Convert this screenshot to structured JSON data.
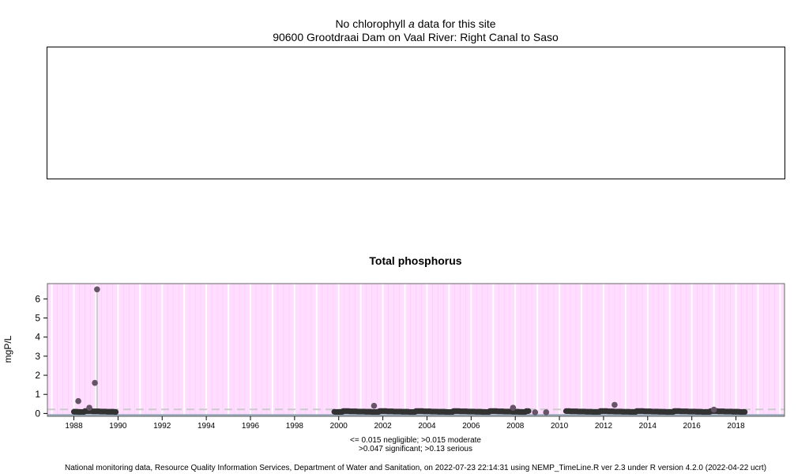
{
  "chla_panel": {
    "title_prefix": "No chlorophyll ",
    "title_italic": "a",
    "title_suffix": " data for this site",
    "site": "90600 Grootdraai Dam on Vaal River: Right Canal to Saso"
  },
  "tp_panel": {
    "title": "Total phosphorus"
  },
  "legend": {
    "line1": "<= 0.015 negligible; >0.015 moderate",
    "line2": ">0.047 significant; >0.13 serious"
  },
  "footer": "National monitoring data, Resource Quality Information Services, Department of Water and Sanitation, on 2022-07-23 22:14:31 using NEMP_TimeLine.R ver 2.3 under R version 4.2.0 (2022-04-22 ucrt)",
  "colors": {
    "background_bands": "#ffddff",
    "major_grid": "#ffffff",
    "minor_grid": "#ffccff",
    "points": "#333333",
    "outlier_points": "#665566",
    "threshold_band": "#99aabb",
    "threshold_dash": "#cccccc",
    "spike": "#cccccc"
  },
  "chart_data": {
    "type": "scatter",
    "title": "Total phosphorus",
    "xlabel": "",
    "ylabel": "mgP/L",
    "xlim": [
      1986.8,
      2020.2
    ],
    "ylim": [
      -0.15,
      6.8
    ],
    "x_ticks": [
      1988,
      1990,
      1992,
      1994,
      1996,
      1998,
      2000,
      2002,
      2004,
      2006,
      2008,
      2010,
      2012,
      2014,
      2016,
      2018
    ],
    "y_ticks": [
      0,
      1,
      2,
      3,
      4,
      5,
      6
    ],
    "grid": "vertical yearly and quarterly lines",
    "thresholds": [
      0.015,
      0.047,
      0.13
    ],
    "threshold_labels": [
      "negligible",
      "moderate",
      "significant",
      "serious"
    ],
    "highlighted_points": [
      {
        "x": 1988.2,
        "y": 0.65
      },
      {
        "x": 1988.7,
        "y": 0.3
      },
      {
        "x": 1988.95,
        "y": 1.6
      },
      {
        "x": 1989.05,
        "y": 6.5
      },
      {
        "x": 2001.6,
        "y": 0.4
      },
      {
        "x": 2007.9,
        "y": 0.3
      },
      {
        "x": 2012.5,
        "y": 0.45
      },
      {
        "x": 2017.0,
        "y": 0.2
      },
      {
        "x": 2008.9,
        "y": 0.06
      },
      {
        "x": 2009.4,
        "y": 0.06
      }
    ],
    "dense_segments": [
      {
        "x_start": 1988.0,
        "x_end": 1989.9,
        "y": 0.1,
        "spacing": 0.05
      },
      {
        "x_start": 1999.8,
        "x_end": 2008.6,
        "y": 0.1,
        "spacing": 0.05
      },
      {
        "x_start": 2010.3,
        "x_end": 2018.4,
        "y": 0.1,
        "spacing": 0.05
      }
    ],
    "spike_x": 1989.05
  }
}
